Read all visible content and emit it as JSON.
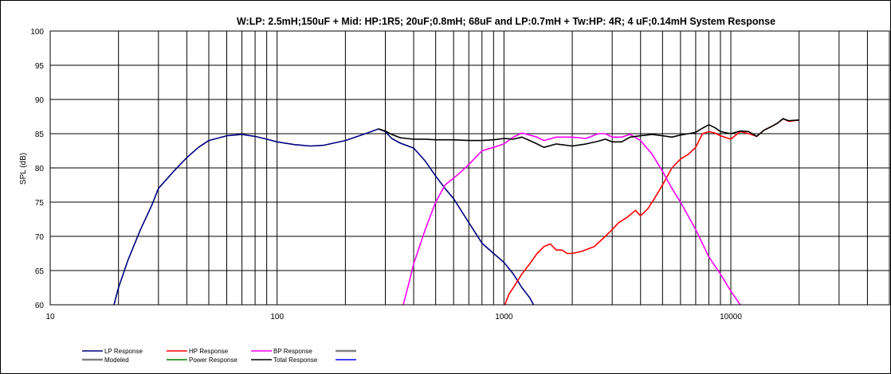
{
  "chart_data": {
    "type": "line",
    "title": "W:LP: 2.5mH;150uF + Mid: HP:1R5; 20uF;0.8mH; 68uF and LP:0.7mH + Tw:HP: 4R; 4 uF;0.14mH  System Response",
    "xlabel": "",
    "ylabel": "SPL (dB)",
    "xscale": "log",
    "xlim": [
      10,
      50000
    ],
    "ylim": [
      60,
      100
    ],
    "grid": true,
    "xticks": [
      10,
      100,
      1000,
      10000
    ],
    "xtick_labels": [
      "10",
      "100",
      "1000",
      "10000"
    ],
    "yticks": [
      60,
      65,
      70,
      75,
      80,
      85,
      90,
      95,
      100
    ],
    "ytick_labels": [
      "60",
      "65",
      "70",
      "75",
      "80",
      "85",
      "90",
      "95",
      "100"
    ],
    "legend_position": "bottom-left",
    "series": [
      {
        "name": "LP Response",
        "color": "#000080",
        "x": [
          19.1,
          20,
          22,
          25,
          28,
          30,
          35,
          40,
          45,
          50,
          60,
          70,
          80,
          90,
          100,
          120,
          140,
          160,
          200,
          250,
          280,
          300,
          320,
          350,
          400,
          450,
          500,
          550,
          600,
          700,
          800,
          900,
          1000,
          1100,
          1200,
          1300,
          1350
        ],
        "y": [
          60,
          62.5,
          66.5,
          71,
          74.5,
          77,
          79.5,
          81.5,
          83,
          84,
          84.7,
          84.9,
          84.6,
          84.2,
          83.8,
          83.4,
          83.2,
          83.3,
          84,
          85.1,
          85.7,
          85.3,
          84.3,
          83.6,
          82.9,
          81,
          78.8,
          77,
          75.5,
          72,
          69,
          67.5,
          66.2,
          64.5,
          62.5,
          61,
          60
        ]
      },
      {
        "name": "HP Response",
        "color": "#ff0000",
        "x": [
          1010,
          1050,
          1100,
          1200,
          1300,
          1400,
          1500,
          1600,
          1700,
          1800,
          1900,
          2000,
          2200,
          2500,
          2800,
          3000,
          3200,
          3500,
          3800,
          4000,
          4300,
          4600,
          5000,
          5500,
          6000,
          6500,
          7000,
          7500,
          8000,
          8500,
          9000,
          10000,
          11000,
          12000,
          13000,
          14000,
          15000,
          16000,
          17000,
          18000,
          20000
        ],
        "y": [
          60,
          61.5,
          62.5,
          64.5,
          66,
          67.5,
          68.5,
          68.9,
          68,
          68,
          67.5,
          67.5,
          67.8,
          68.5,
          70,
          71,
          72,
          72.8,
          73.8,
          73,
          74,
          75.5,
          77.5,
          80,
          81.3,
          82,
          83,
          85,
          85.3,
          85.1,
          84.7,
          84.2,
          85.3,
          85,
          84.6,
          85.5,
          86,
          86.5,
          87.2,
          86.8,
          87
        ]
      },
      {
        "name": "BP Response",
        "color": "#ff00ff",
        "x": [
          360,
          380,
          400,
          450,
          500,
          550,
          600,
          650,
          700,
          800,
          900,
          1000,
          1100,
          1200,
          1400,
          1500,
          1700,
          2000,
          2300,
          2600,
          2800,
          3000,
          3300,
          3600,
          4000,
          4500,
          5000,
          5500,
          6000,
          7000,
          8000,
          9000,
          10000,
          11000
        ],
        "y": [
          60,
          63,
          66,
          71,
          75,
          77.5,
          78.5,
          79.5,
          80.5,
          82.5,
          83,
          83.5,
          84.5,
          85.1,
          84.5,
          84,
          84.5,
          84.5,
          84.3,
          85,
          85,
          84.5,
          84.5,
          84.9,
          84,
          82,
          79.5,
          77,
          75,
          71,
          67,
          64.5,
          62,
          60
        ]
      },
      {
        "name": "Total Response",
        "color": "#000000",
        "x": [
          280,
          300,
          320,
          350,
          400,
          450,
          500,
          600,
          700,
          800,
          900,
          1000,
          1100,
          1200,
          1300,
          1400,
          1500,
          1700,
          2000,
          2300,
          2600,
          2800,
          3000,
          3300,
          3600,
          4000,
          4500,
          5000,
          5500,
          6000,
          6500,
          7000,
          7500,
          8000,
          8500,
          9000,
          10000,
          11000,
          12000,
          13000,
          14000,
          15000,
          16000,
          17000,
          18000,
          20000
        ],
        "y": [
          85.7,
          85.4,
          84.9,
          84.4,
          84.2,
          84.2,
          84.1,
          84.1,
          84,
          84,
          84.1,
          84.3,
          84.2,
          84.5,
          84,
          83.5,
          83,
          83.5,
          83.2,
          83.5,
          83.9,
          84.2,
          83.8,
          83.8,
          84.5,
          84.7,
          84.9,
          84.7,
          84.5,
          84.8,
          85,
          85.2,
          85.8,
          86.3,
          85.9,
          85.3,
          85,
          85.4,
          85.3,
          84.6,
          85.5,
          86,
          86.5,
          87.2,
          86.9,
          87
        ]
      }
    ],
    "legend": [
      {
        "name": "LP Response",
        "color": "#000080"
      },
      {
        "name": "HP Response",
        "color": "#ff0000"
      },
      {
        "name": "BP Response",
        "color": "#ff00ff"
      },
      {
        "name": "",
        "color": "#808080"
      },
      {
        "name": "Modeled",
        "color": "#808080"
      },
      {
        "name": "Power Response",
        "color": "#008000"
      },
      {
        "name": "Total Response",
        "color": "#000000"
      },
      {
        "name": "",
        "color": "#0000ff"
      }
    ]
  }
}
